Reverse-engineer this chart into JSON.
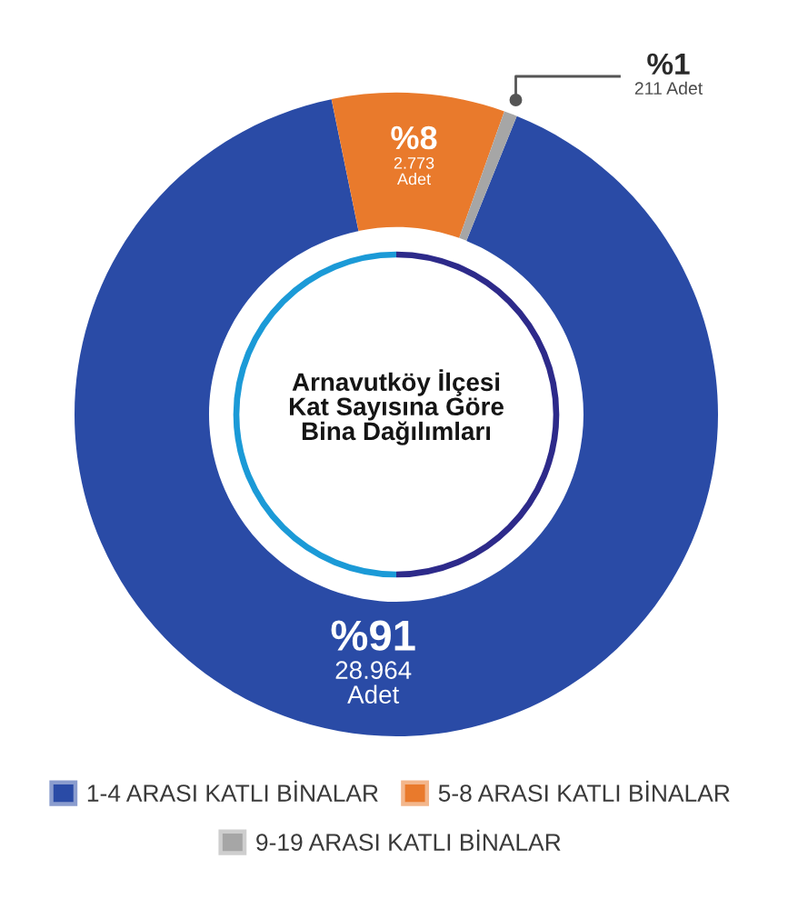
{
  "chart_data": {
    "type": "donut",
    "title": "Arnavutköy İlçesi\nKat Sayısına Göre\nBina Dağılımları",
    "categories": [
      "1-4 ARASI KATLI BİNALAR",
      "5-8 ARASI KATLI BİNALAR",
      "9-19 ARASI KATLI BİNALAR"
    ],
    "values": [
      28964,
      2773,
      211
    ],
    "colors": [
      "#2a4ba6",
      "#e97a2c",
      "#a6a6a6"
    ],
    "value_labels": [
      "28.964\nAdet",
      "2.773\nAdet",
      "211 Adet"
    ],
    "annotations": [
      {
        "text": "%91",
        "x": "1-4 ARASI KATLI BİNALAR"
      },
      {
        "text": "%8",
        "x": "5-8 ARASI KATLI BİNALAR"
      },
      {
        "text": "%1",
        "x": "9-19 ARASI KATLI BİNALAR"
      }
    ],
    "legend": "bottom"
  }
}
